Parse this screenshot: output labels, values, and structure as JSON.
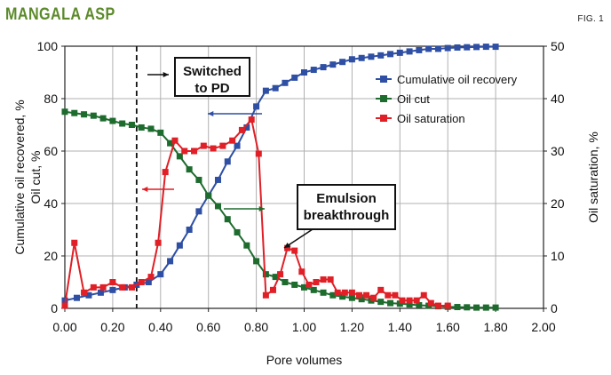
{
  "header": {
    "title": "MANGALA ASP",
    "fig_label": "FIG. 1"
  },
  "colors": {
    "recovery": "#2e4fa3",
    "oil_cut": "#1e6b2e",
    "saturation": "#e01f26",
    "title": "#5c8a2a",
    "grid": "#b0b0b0"
  },
  "chart_data": {
    "type": "line",
    "xlabel": "Pore volumes",
    "ylabel_left": "Cumulative oil recovered, %\nOil cut, %",
    "ylabel_right": "Oil saturation, %",
    "xlim": [
      0,
      2
    ],
    "ylim_left": [
      0,
      100
    ],
    "ylim_right": [
      0,
      50
    ],
    "x_ticks": [
      "0.00",
      "0.20",
      "0.40",
      "0.60",
      "0.80",
      "1.00",
      "1.20",
      "1.40",
      "1.60",
      "1.80",
      "2.00"
    ],
    "y_left_ticks": [
      "0",
      "20",
      "40",
      "60",
      "80",
      "100"
    ],
    "y_right_ticks": [
      "0",
      "10",
      "20",
      "30",
      "40",
      "50"
    ],
    "grid": true,
    "legend_position": "top-right",
    "switch_line_x": 0.3,
    "series": [
      {
        "name": "Cumulative oil recovery",
        "axis": "left",
        "color": "#2e4fa3",
        "x": [
          0.0,
          0.05,
          0.1,
          0.15,
          0.2,
          0.25,
          0.3,
          0.35,
          0.4,
          0.44,
          0.48,
          0.52,
          0.56,
          0.6,
          0.64,
          0.68,
          0.72,
          0.76,
          0.8,
          0.84,
          0.88,
          0.92,
          0.96,
          1.0,
          1.04,
          1.08,
          1.12,
          1.16,
          1.2,
          1.24,
          1.28,
          1.32,
          1.36,
          1.4,
          1.44,
          1.48,
          1.52,
          1.56,
          1.6,
          1.64,
          1.68,
          1.72,
          1.76,
          1.8
        ],
        "y": [
          3,
          4,
          5,
          6,
          7,
          8,
          9,
          10,
          13,
          18,
          24,
          30,
          37,
          43,
          49,
          56,
          62,
          69,
          77,
          83,
          84,
          86,
          88,
          90,
          91,
          92,
          93,
          94,
          95,
          95.5,
          96,
          96.5,
          97,
          97.5,
          98,
          98.5,
          99,
          99,
          99.3,
          99.5,
          99.6,
          99.7,
          99.8,
          99.8
        ]
      },
      {
        "name": "Oil cut",
        "axis": "left",
        "color": "#1e6b2e",
        "x": [
          0.0,
          0.04,
          0.08,
          0.12,
          0.16,
          0.2,
          0.24,
          0.28,
          0.32,
          0.36,
          0.4,
          0.44,
          0.48,
          0.52,
          0.56,
          0.6,
          0.64,
          0.68,
          0.72,
          0.76,
          0.8,
          0.84,
          0.88,
          0.92,
          0.96,
          1.0,
          1.04,
          1.08,
          1.12,
          1.16,
          1.2,
          1.24,
          1.28,
          1.32,
          1.36,
          1.4,
          1.44,
          1.48,
          1.52,
          1.56,
          1.6,
          1.64,
          1.68,
          1.72,
          1.76,
          1.8
        ],
        "y": [
          75,
          74.5,
          74,
          73.5,
          72.5,
          71.5,
          70.5,
          70,
          69,
          68.5,
          67,
          63,
          58,
          53,
          49,
          43,
          39,
          34,
          29,
          24,
          18,
          13,
          12,
          10,
          9,
          8,
          7,
          6,
          5,
          4.5,
          4,
          3.5,
          3,
          2.5,
          2,
          1.8,
          1.5,
          1.2,
          1,
          0.8,
          0.6,
          0.5,
          0.4,
          0.3,
          0.3,
          0.3
        ]
      },
      {
        "name": "Oil saturation",
        "axis": "right",
        "color": "#e01f26",
        "x": [
          0.0,
          0.04,
          0.08,
          0.12,
          0.16,
          0.2,
          0.24,
          0.28,
          0.32,
          0.36,
          0.39,
          0.42,
          0.46,
          0.5,
          0.54,
          0.58,
          0.62,
          0.66,
          0.7,
          0.74,
          0.78,
          0.81,
          0.84,
          0.87,
          0.9,
          0.93,
          0.96,
          0.99,
          1.02,
          1.05,
          1.08,
          1.11,
          1.14,
          1.17,
          1.2,
          1.23,
          1.26,
          1.29,
          1.32,
          1.35,
          1.38,
          1.41,
          1.44,
          1.47,
          1.5,
          1.53,
          1.56,
          1.6
        ],
        "y": [
          0.5,
          12.5,
          3,
          4,
          4,
          5,
          4,
          4,
          5,
          6,
          12.5,
          26,
          32,
          30,
          30,
          31,
          30.5,
          31,
          32,
          34,
          36,
          29.5,
          2.5,
          3.5,
          6.5,
          11.5,
          11,
          7,
          4.5,
          5,
          5.5,
          5.5,
          3,
          3,
          3,
          2.5,
          2.5,
          2,
          3.5,
          2.5,
          2.5,
          1.5,
          1.5,
          1.5,
          2.5,
          1,
          0.5,
          0.5
        ]
      }
    ],
    "annotations": [
      {
        "label": "Switched to PD",
        "lines": [
          "Switched",
          "to PD"
        ]
      },
      {
        "label": "Emulsion breakthrough",
        "lines": [
          "Emulsion",
          "breakthrough"
        ]
      }
    ]
  }
}
